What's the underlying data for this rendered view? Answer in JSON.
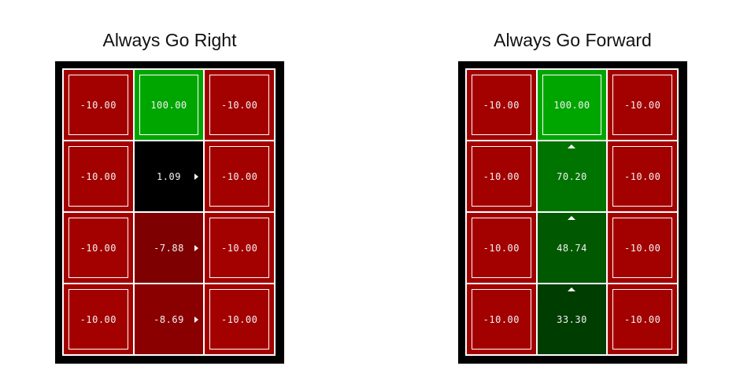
{
  "panels": [
    {
      "title": "Always Go Right",
      "policy_arrow": "right",
      "cells": [
        {
          "value": "-10.00",
          "terminal": true,
          "color": "#a30000",
          "arrow": ""
        },
        {
          "value": "100.00",
          "terminal": true,
          "color": "#00a600",
          "arrow": ""
        },
        {
          "value": "-10.00",
          "terminal": true,
          "color": "#a30000",
          "arrow": ""
        },
        {
          "value": "-10.00",
          "terminal": true,
          "color": "#a30000",
          "arrow": ""
        },
        {
          "value": "1.09",
          "terminal": false,
          "color": "#000000",
          "arrow": "right"
        },
        {
          "value": "-10.00",
          "terminal": true,
          "color": "#a30000",
          "arrow": ""
        },
        {
          "value": "-10.00",
          "terminal": true,
          "color": "#a30000",
          "arrow": ""
        },
        {
          "value": "-7.88",
          "terminal": false,
          "color": "#7e0000",
          "arrow": "right"
        },
        {
          "value": "-10.00",
          "terminal": true,
          "color": "#a30000",
          "arrow": ""
        },
        {
          "value": "-10.00",
          "terminal": true,
          "color": "#a30000",
          "arrow": ""
        },
        {
          "value": "-8.69",
          "terminal": false,
          "color": "#8a0000",
          "arrow": "right"
        },
        {
          "value": "-10.00",
          "terminal": true,
          "color": "#a30000",
          "arrow": ""
        }
      ]
    },
    {
      "title": "Always Go Forward",
      "policy_arrow": "up",
      "cells": [
        {
          "value": "-10.00",
          "terminal": true,
          "color": "#a30000",
          "arrow": ""
        },
        {
          "value": "100.00",
          "terminal": true,
          "color": "#00a600",
          "arrow": ""
        },
        {
          "value": "-10.00",
          "terminal": true,
          "color": "#a30000",
          "arrow": ""
        },
        {
          "value": "-10.00",
          "terminal": true,
          "color": "#a30000",
          "arrow": ""
        },
        {
          "value": "70.20",
          "terminal": false,
          "color": "#007400",
          "arrow": "up"
        },
        {
          "value": "-10.00",
          "terminal": true,
          "color": "#a30000",
          "arrow": ""
        },
        {
          "value": "-10.00",
          "terminal": true,
          "color": "#a30000",
          "arrow": ""
        },
        {
          "value": "48.74",
          "terminal": false,
          "color": "#005800",
          "arrow": "up"
        },
        {
          "value": "-10.00",
          "terminal": true,
          "color": "#a30000",
          "arrow": ""
        },
        {
          "value": "-10.00",
          "terminal": true,
          "color": "#a30000",
          "arrow": ""
        },
        {
          "value": "33.30",
          "terminal": false,
          "color": "#003d00",
          "arrow": "up"
        },
        {
          "value": "-10.00",
          "terminal": true,
          "color": "#a30000",
          "arrow": ""
        }
      ]
    }
  ]
}
